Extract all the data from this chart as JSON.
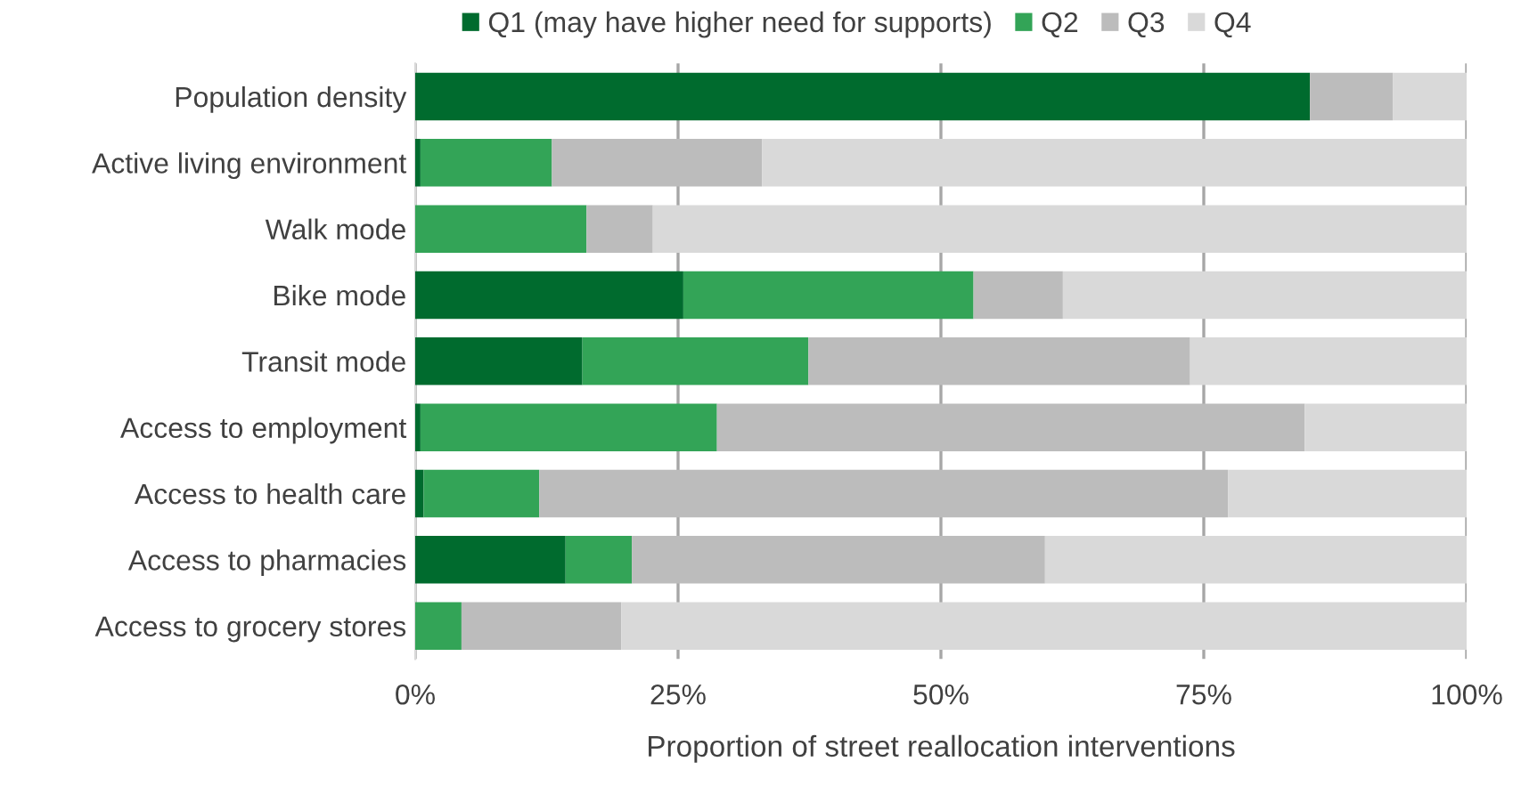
{
  "chart_data": {
    "type": "bar",
    "orientation": "horizontal",
    "stacked": true,
    "xlabel": "Proportion of street reallocation interventions",
    "categories": [
      "Population density",
      "Active living environment",
      "Walk mode",
      "Bike mode",
      "Transit mode",
      "Access to employment",
      "Access to health care",
      "Access to pharmacies",
      "Access to grocery stores"
    ],
    "series": [
      {
        "name": "Q1 (may have higher need for supports)",
        "color": "#006b2e",
        "values": [
          85.1,
          0.5,
          0,
          25.5,
          15.9,
          0.5,
          0.8,
          14.3,
          0
        ]
      },
      {
        "name": "Q2",
        "color": "#33a457",
        "values": [
          0,
          12.5,
          16.3,
          27.6,
          21.5,
          28.2,
          11.0,
          6.3,
          4.4
        ]
      },
      {
        "name": "Q3",
        "color": "#bcbcbc",
        "values": [
          7.9,
          20.0,
          6.3,
          8.5,
          36.3,
          55.9,
          65.5,
          39.3,
          15.2
        ]
      },
      {
        "name": "Q4",
        "color": "#d9d9d9",
        "values": [
          7.0,
          67.0,
          77.4,
          38.4,
          26.3,
          15.4,
          22.7,
          40.1,
          80.4
        ]
      }
    ],
    "xlim": [
      0,
      100
    ],
    "xticks": [
      {
        "value": 0,
        "label": "0%"
      },
      {
        "value": 25,
        "label": "25%"
      },
      {
        "value": 50,
        "label": "50%"
      },
      {
        "value": 75,
        "label": "75%"
      },
      {
        "value": 100,
        "label": "100%"
      }
    ],
    "grid": "x",
    "legend": "top"
  }
}
